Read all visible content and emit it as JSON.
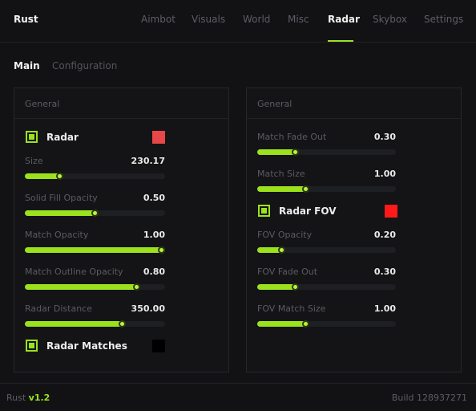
{
  "app": {
    "title": "Rust"
  },
  "tabs": [
    "Aimbot",
    "Visuals",
    "World",
    "Misc",
    "Radar",
    "Skybox",
    "Settings"
  ],
  "active_tab": "Radar",
  "subtabs": [
    "Main",
    "Configuration"
  ],
  "active_subtab": "Main",
  "left_panel": {
    "title": "General",
    "radar": {
      "label": "Radar",
      "checked": true,
      "color": "#e84747"
    },
    "sliders": [
      {
        "label": "Size",
        "value": "230.17",
        "fraction": 0.25
      },
      {
        "label": "Solid Fill Opacity",
        "value": "0.50",
        "fraction": 0.5
      },
      {
        "label": "Match Opacity",
        "value": "1.00",
        "fraction": 1.0
      },
      {
        "label": "Match Outline Opacity",
        "value": "0.80",
        "fraction": 0.8
      },
      {
        "label": "Radar Distance",
        "value": "350.00",
        "fraction": 0.7
      }
    ],
    "radar_matches": {
      "label": "Radar Matches",
      "checked": true,
      "color": "#000000"
    }
  },
  "right_panel": {
    "title": "General",
    "sliders_top": [
      {
        "label": "Match Fade Out",
        "value": "0.30",
        "fraction": 0.28
      },
      {
        "label": "Match Size",
        "value": "1.00",
        "fraction": 0.35
      }
    ],
    "radar_fov": {
      "label": "Radar FOV",
      "checked": true,
      "color": "#ff1a1a"
    },
    "sliders_bottom": [
      {
        "label": "FOV Opacity",
        "value": "0.20",
        "fraction": 0.18
      },
      {
        "label": "FOV Fade Out",
        "value": "0.30",
        "fraction": 0.28
      },
      {
        "label": "FOV Match Size",
        "value": "1.00",
        "fraction": 0.35
      }
    ]
  },
  "footer": {
    "name": "Rust",
    "version": "v1.2",
    "build": "Build 128937271"
  },
  "colors": {
    "accent": "#9be21d",
    "background": "#121214"
  }
}
